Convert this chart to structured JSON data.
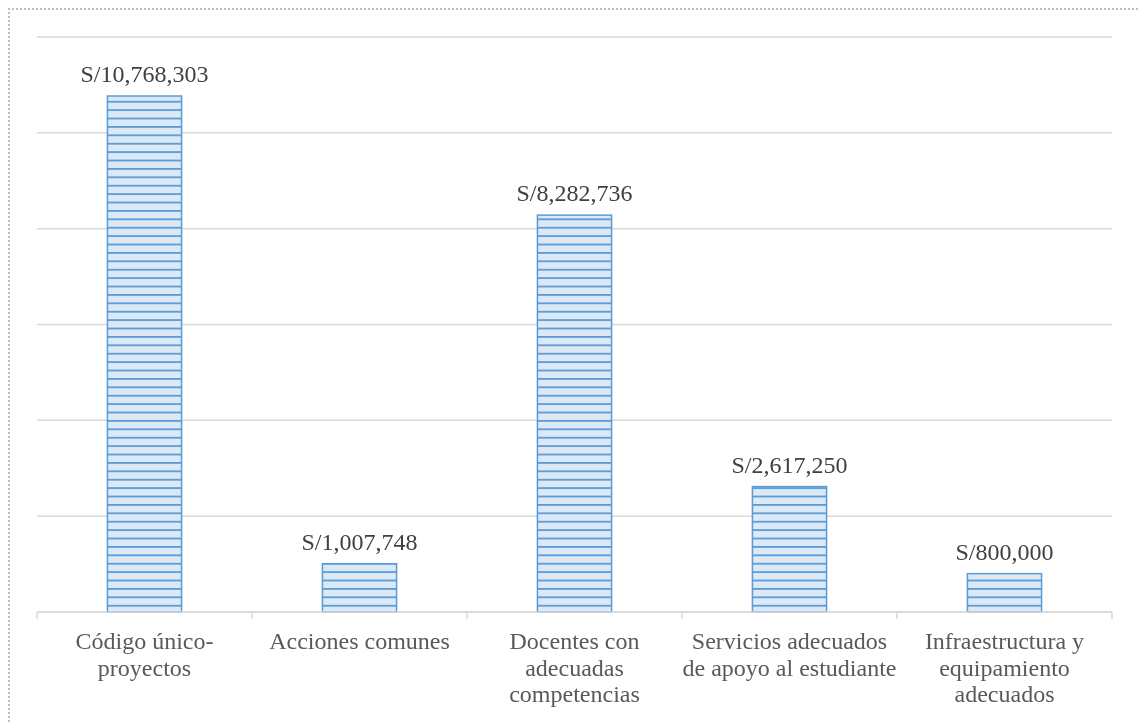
{
  "chart_data": {
    "type": "bar",
    "categories": [
      "Código único-proyectos",
      "Acciones comunes",
      "Docentes con adecuadas competencias",
      "Servicios adecuados de apoyo al estudiante",
      "Infraestructura y equipamiento adecuados"
    ],
    "values": [
      10768303,
      1007748,
      8282736,
      2617250,
      800000
    ],
    "value_labels": [
      "S/10,768,303",
      "S/1,007,748",
      "S/8,282,736",
      "S/2,617,250",
      "S/800,000"
    ],
    "color": "#5b9bd5",
    "ylim": [
      0,
      12000000
    ],
    "yticks": [
      {
        "value": 0,
        "label": null
      },
      {
        "value": 2000000,
        "label": null
      },
      {
        "value": 4000000,
        "label": null
      },
      {
        "value": 6000000,
        "label": null
      },
      {
        "value": 8000000,
        "label": null
      },
      {
        "value": 10000000,
        "label": null
      },
      {
        "value": 12000000,
        "label": null
      }
    ],
    "grid": "y",
    "tick_labels": "x"
  }
}
